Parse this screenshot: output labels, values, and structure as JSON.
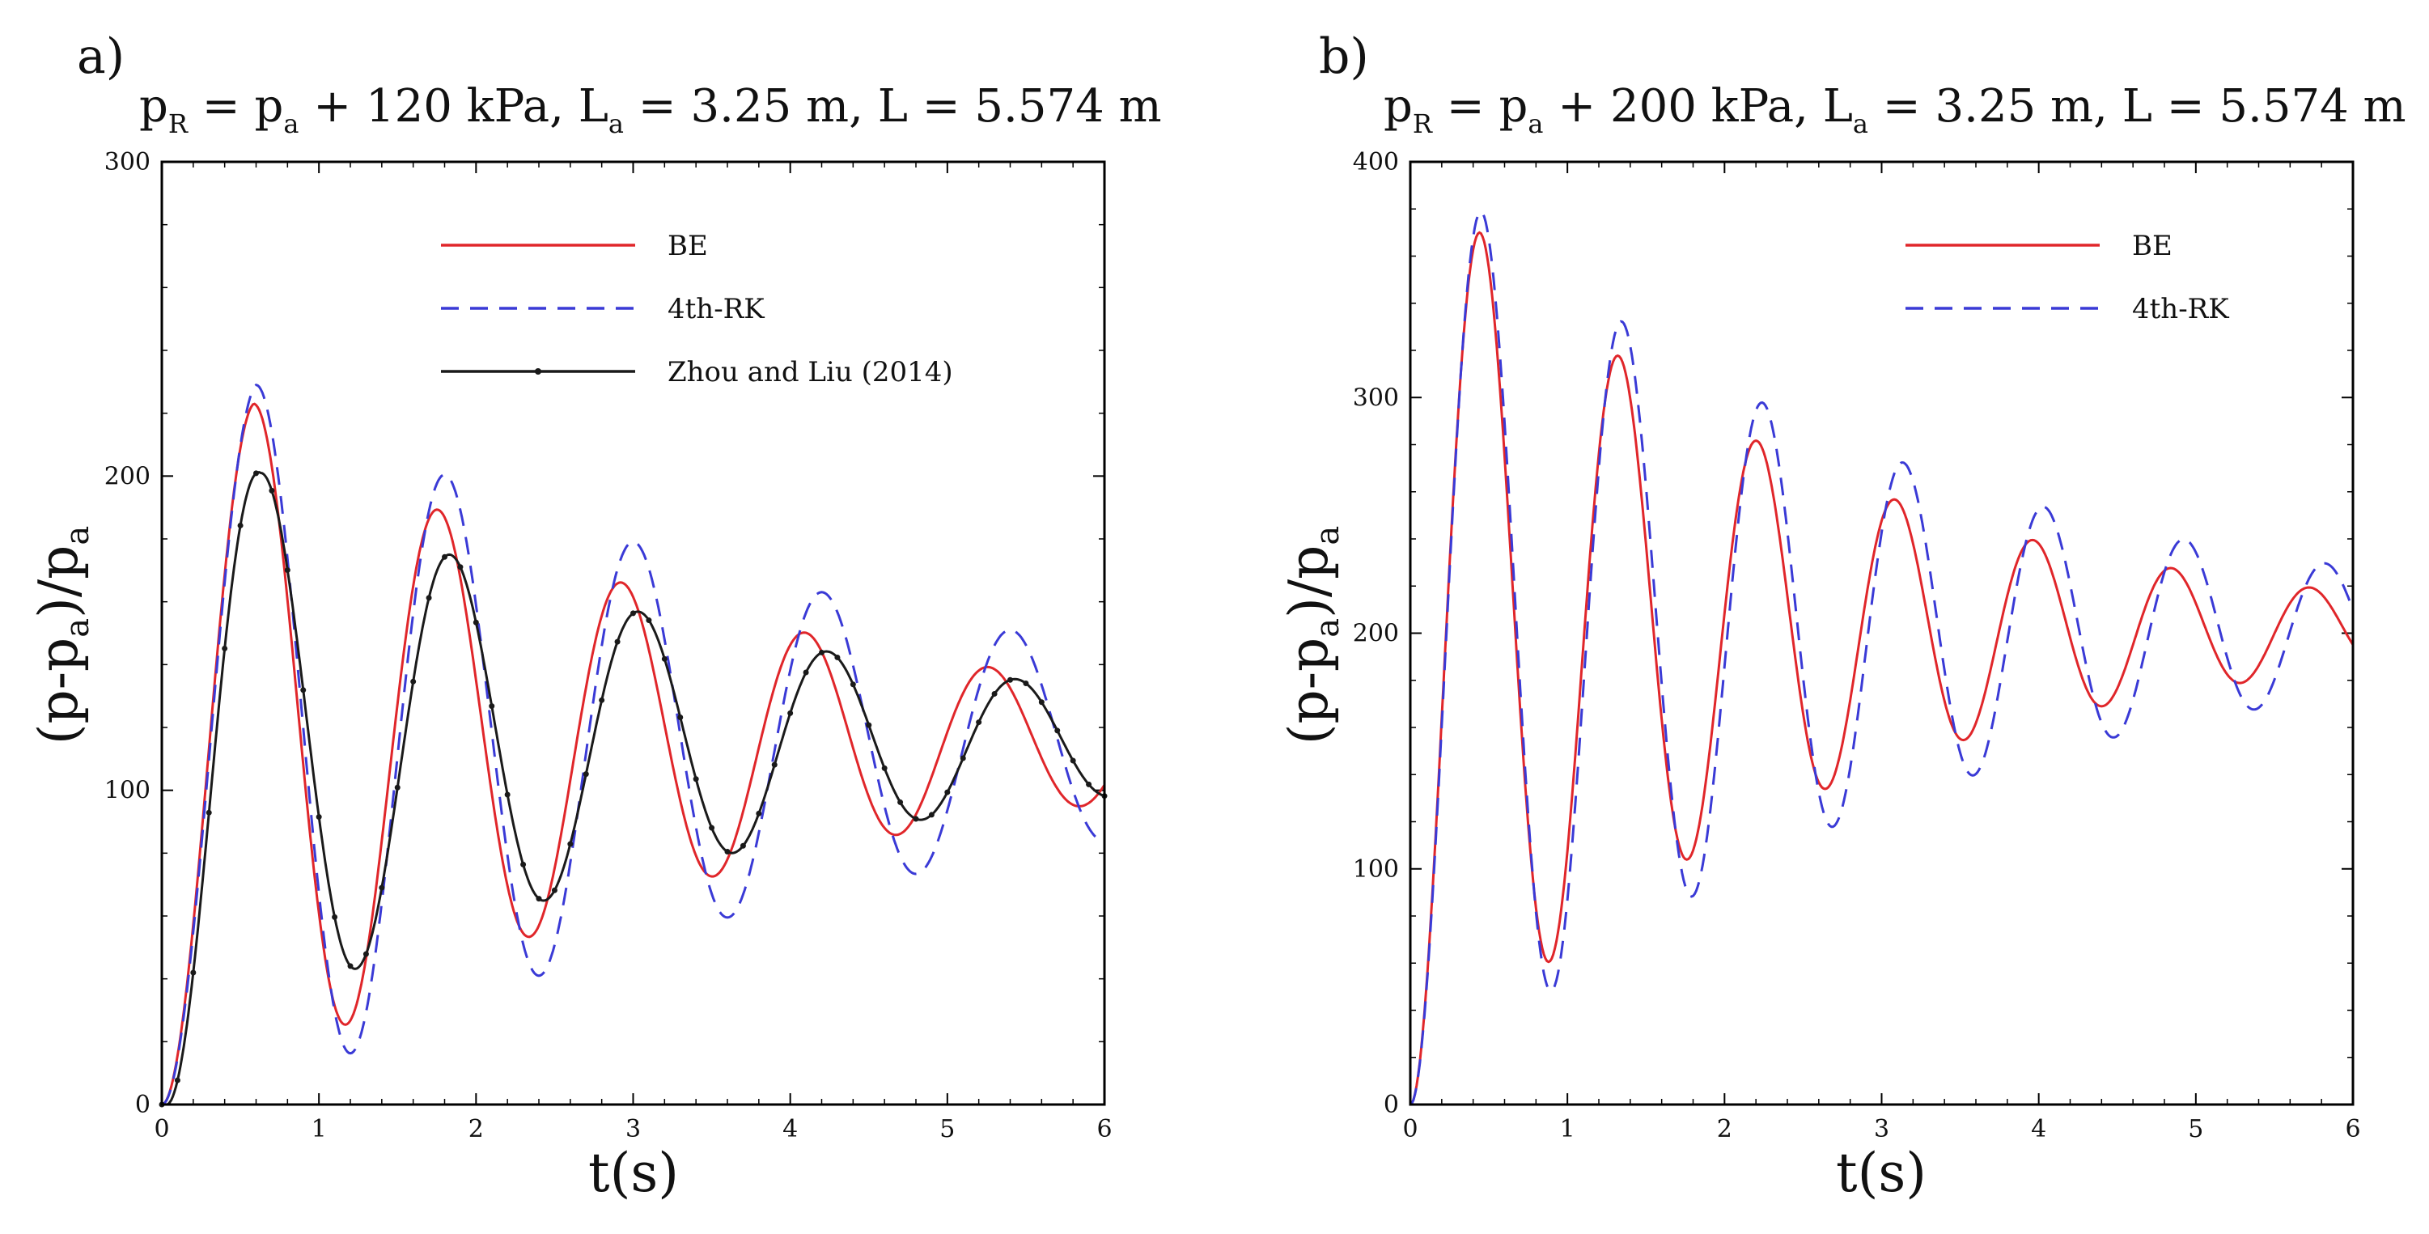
{
  "chart_data": [
    {
      "panel": "a)",
      "type": "line",
      "title": {
        "pR": "p",
        "pR_sub": "R",
        "eq1": " = ",
        "pa": "p",
        "pa_sub": "a",
        "mid": " + 120 kPa, ",
        "La": "L",
        "La_sub": "a",
        "tail": " = 3.25 m, L = 5.574 m"
      },
      "xlabel": "t(s)",
      "ylabel": {
        "pre": "(p-p",
        "sub1": "a",
        "mid": ")/p",
        "sub2": "a"
      },
      "xlim": [
        0,
        6
      ],
      "ylim": [
        0,
        300
      ],
      "xticks": [
        0,
        1,
        2,
        3,
        4,
        5,
        6
      ],
      "yticks": [
        0,
        100,
        200,
        300
      ],
      "legend_position": "top-right",
      "series": [
        {
          "name": "BE",
          "color": "#e0262a",
          "style": "solid",
          "amplitude": 108,
          "damping": 0.32,
          "period": 1.168,
          "final": 115,
          "phase_delay": 0,
          "lag": 0,
          "markers": false
        },
        {
          "name": "4th-RK",
          "color": "#3a3ad6",
          "style": "dashed",
          "amplitude": 114,
          "damping": 0.24,
          "period": 1.2,
          "final": 115,
          "phase_delay": 0.03,
          "lag": 0,
          "markers": false
        },
        {
          "name": "Zhou and Liu (2014)",
          "color": "#1a1a1a",
          "style": "solid",
          "amplitude": 86,
          "damping": 0.3,
          "period": 1.2,
          "final": 115,
          "phase_delay": 0.1,
          "lag": 0.03,
          "markers": true
        }
      ]
    },
    {
      "panel": "b)",
      "type": "line",
      "title": {
        "pR": "p",
        "pR_sub": "R",
        "eq1": " = ",
        "pa": "p",
        "pa_sub": "a",
        "mid": " + 200 kPa, ",
        "La": "L",
        "La_sub": "a",
        "tail": " = 3.25 m, L = 5.574 m"
      },
      "xlabel": "t(s)",
      "ylabel": {
        "pre": "(p-p",
        "sub1": "a",
        "mid": ")/p",
        "sub2": "a"
      },
      "xlim": [
        0,
        6
      ],
      "ylim": [
        0,
        400
      ],
      "xticks": [
        0,
        1,
        2,
        3,
        4,
        5,
        6
      ],
      "yticks": [
        0,
        100,
        200,
        300,
        400
      ],
      "legend_position": "top-right",
      "series": [
        {
          "name": "BE",
          "color": "#e0262a",
          "style": "solid",
          "amplitude": 169,
          "damping": 0.42,
          "period": 0.88,
          "final": 201,
          "phase_delay": 0,
          "lag": 0,
          "markers": false
        },
        {
          "name": "4th-RK",
          "color": "#3a3ad6",
          "style": "dashed",
          "amplitude": 178,
          "damping": 0.34,
          "period": 0.895,
          "final": 201,
          "phase_delay": 0.03,
          "lag": 0,
          "markers": false
        }
      ]
    }
  ]
}
